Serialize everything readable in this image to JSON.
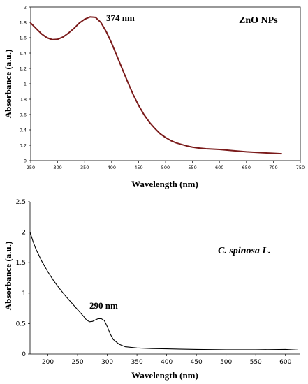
{
  "chart_data": [
    {
      "type": "line",
      "xlabel": "Wavelength (nm)",
      "ylabel": "Absorbance (a.u.)",
      "xlim": [
        250,
        750
      ],
      "ylim": [
        0,
        2
      ],
      "x_ticks": [
        "250",
        "300",
        "350",
        "400",
        "450",
        "500",
        "550",
        "600",
        "650",
        "700",
        "750"
      ],
      "y_ticks": [
        "0",
        "0.2",
        "0.4",
        "0.6",
        "0.8",
        "1",
        "1.2",
        "1.4",
        "1.6",
        "1.8",
        "2"
      ],
      "legend_text": "ZnO NPs",
      "legend_position": "top-right",
      "annotation": "374 nm",
      "line_color": "#7a1a1a",
      "series": [
        {
          "x": [
            250,
            260,
            270,
            280,
            290,
            300,
            310,
            320,
            330,
            340,
            350,
            360,
            370,
            380,
            390,
            400,
            410,
            420,
            430,
            440,
            450,
            460,
            470,
            480,
            490,
            500,
            510,
            520,
            530,
            540,
            550,
            560,
            575,
            600,
            625,
            650,
            675,
            700,
            715
          ],
          "y": [
            1.79,
            1.72,
            1.65,
            1.6,
            1.575,
            1.58,
            1.61,
            1.66,
            1.72,
            1.79,
            1.84,
            1.87,
            1.865,
            1.8,
            1.68,
            1.53,
            1.36,
            1.19,
            1.02,
            0.86,
            0.72,
            0.6,
            0.5,
            0.42,
            0.35,
            0.3,
            0.26,
            0.23,
            0.21,
            0.19,
            0.175,
            0.165,
            0.155,
            0.145,
            0.13,
            0.115,
            0.105,
            0.095,
            0.09
          ]
        }
      ]
    },
    {
      "type": "line",
      "xlabel": "Wavelength (nm)",
      "ylabel": "Absorbance (a.u.)",
      "xlim": [
        170,
        625
      ],
      "ylim": [
        0,
        2.5
      ],
      "x_ticks": [
        "200",
        "250",
        "300",
        "350",
        "400",
        "450",
        "500",
        "550",
        "600"
      ],
      "y_ticks": [
        "0",
        "0.5",
        "1",
        "1.5",
        "2",
        "2.5"
      ],
      "legend_text": "C. spinosa L.",
      "legend_position": "top-right",
      "annotation": "290 nm",
      "line_color": "#000000",
      "series": [
        {
          "x": [
            170,
            175,
            180,
            190,
            200,
            210,
            220,
            230,
            240,
            250,
            260,
            265,
            270,
            275,
            280,
            285,
            290,
            295,
            300,
            305,
            310,
            320,
            330,
            340,
            350,
            375,
            400,
            450,
            500,
            550,
            600,
            610,
            620
          ],
          "y": [
            2.0,
            1.85,
            1.72,
            1.52,
            1.35,
            1.2,
            1.07,
            0.95,
            0.84,
            0.73,
            0.62,
            0.56,
            0.53,
            0.535,
            0.56,
            0.58,
            0.58,
            0.55,
            0.45,
            0.33,
            0.24,
            0.16,
            0.12,
            0.11,
            0.1,
            0.09,
            0.085,
            0.075,
            0.07,
            0.07,
            0.075,
            0.07,
            0.065
          ]
        }
      ]
    }
  ]
}
